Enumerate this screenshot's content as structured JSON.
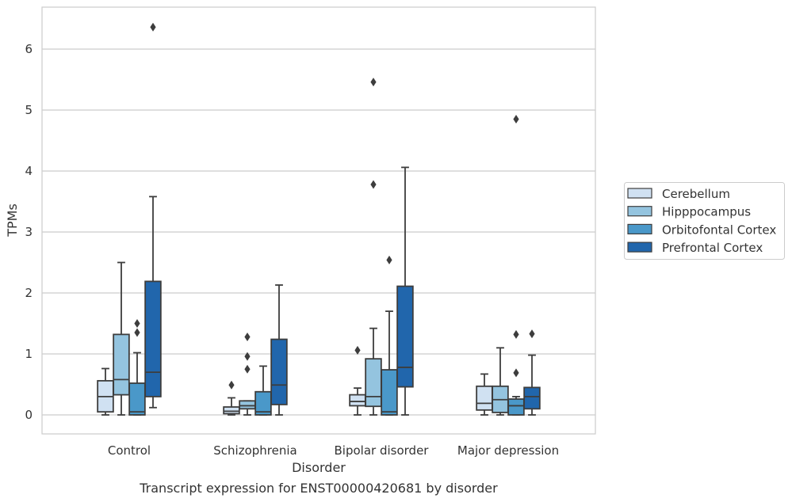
{
  "chart_data": {
    "type": "box",
    "caption": "Transcript expression for ENST00000420681 by disorder",
    "xlabel": "Disorder",
    "ylabel": "TPMs",
    "ylim": [
      -0.31,
      6.7
    ],
    "yticks": [
      0,
      1,
      2,
      3,
      4,
      5,
      6
    ],
    "grid": "horizontal",
    "legend_position": "right",
    "categories": [
      "Control",
      "Schizophrenia",
      "Bipolar disorder",
      "Major depression"
    ],
    "series": [
      {
        "name": "Cerebellum",
        "color": "#d0e1f2",
        "boxes": [
          {
            "whislo": 0.0,
            "q1": 0.05,
            "med": 0.3,
            "q3": 0.56,
            "whishi": 0.76,
            "fliers": []
          },
          {
            "whislo": 0.0,
            "q1": 0.02,
            "med": 0.06,
            "q3": 0.13,
            "whishi": 0.28,
            "fliers": [
              0.49
            ]
          },
          {
            "whislo": 0.0,
            "q1": 0.15,
            "med": 0.22,
            "q3": 0.33,
            "whishi": 0.44,
            "fliers": [
              1.06
            ]
          },
          {
            "whislo": 0.0,
            "q1": 0.08,
            "med": 0.19,
            "q3": 0.47,
            "whishi": 0.67,
            "fliers": []
          }
        ]
      },
      {
        "name": "Hipppocampus",
        "color": "#94c4df",
        "boxes": [
          {
            "whislo": 0.0,
            "q1": 0.33,
            "med": 0.58,
            "q3": 1.32,
            "whishi": 2.5,
            "fliers": []
          },
          {
            "whislo": 0.0,
            "q1": 0.1,
            "med": 0.15,
            "q3": 0.23,
            "whishi": 0.23,
            "fliers": [
              0.75,
              0.96,
              1.28
            ]
          },
          {
            "whislo": 0.0,
            "q1": 0.14,
            "med": 0.3,
            "q3": 0.92,
            "whishi": 1.42,
            "fliers": [
              3.78,
              5.46
            ]
          },
          {
            "whislo": 0.0,
            "q1": 0.04,
            "med": 0.25,
            "q3": 0.47,
            "whishi": 1.1,
            "fliers": []
          }
        ]
      },
      {
        "name": "Orbitofontal Cortex",
        "color": "#4a98c9",
        "boxes": [
          {
            "whislo": 0.0,
            "q1": 0.0,
            "med": 0.05,
            "q3": 0.52,
            "whishi": 1.02,
            "fliers": [
              1.35,
              1.5
            ]
          },
          {
            "whislo": 0.0,
            "q1": 0.0,
            "med": 0.05,
            "q3": 0.38,
            "whishi": 0.8,
            "fliers": []
          },
          {
            "whislo": 0.0,
            "q1": 0.0,
            "med": 0.05,
            "q3": 0.74,
            "whishi": 1.7,
            "fliers": [
              2.54
            ]
          },
          {
            "whislo": 0.0,
            "q1": 0.0,
            "med": 0.15,
            "q3": 0.26,
            "whishi": 0.3,
            "fliers": [
              0.69,
              1.32,
              4.85
            ]
          }
        ]
      },
      {
        "name": "Prefrontal Cortex",
        "color": "#2166ac",
        "boxes": [
          {
            "whislo": 0.12,
            "q1": 0.3,
            "med": 0.7,
            "q3": 2.19,
            "whishi": 3.58,
            "fliers": [
              6.36
            ]
          },
          {
            "whislo": 0.0,
            "q1": 0.17,
            "med": 0.49,
            "q3": 1.24,
            "whishi": 2.13,
            "fliers": []
          },
          {
            "whislo": 0.0,
            "q1": 0.46,
            "med": 0.78,
            "q3": 2.11,
            "whishi": 4.06,
            "fliers": []
          },
          {
            "whislo": 0.0,
            "q1": 0.1,
            "med": 0.3,
            "q3": 0.45,
            "whishi": 0.98,
            "fliers": [
              1.33
            ]
          }
        ]
      }
    ]
  }
}
